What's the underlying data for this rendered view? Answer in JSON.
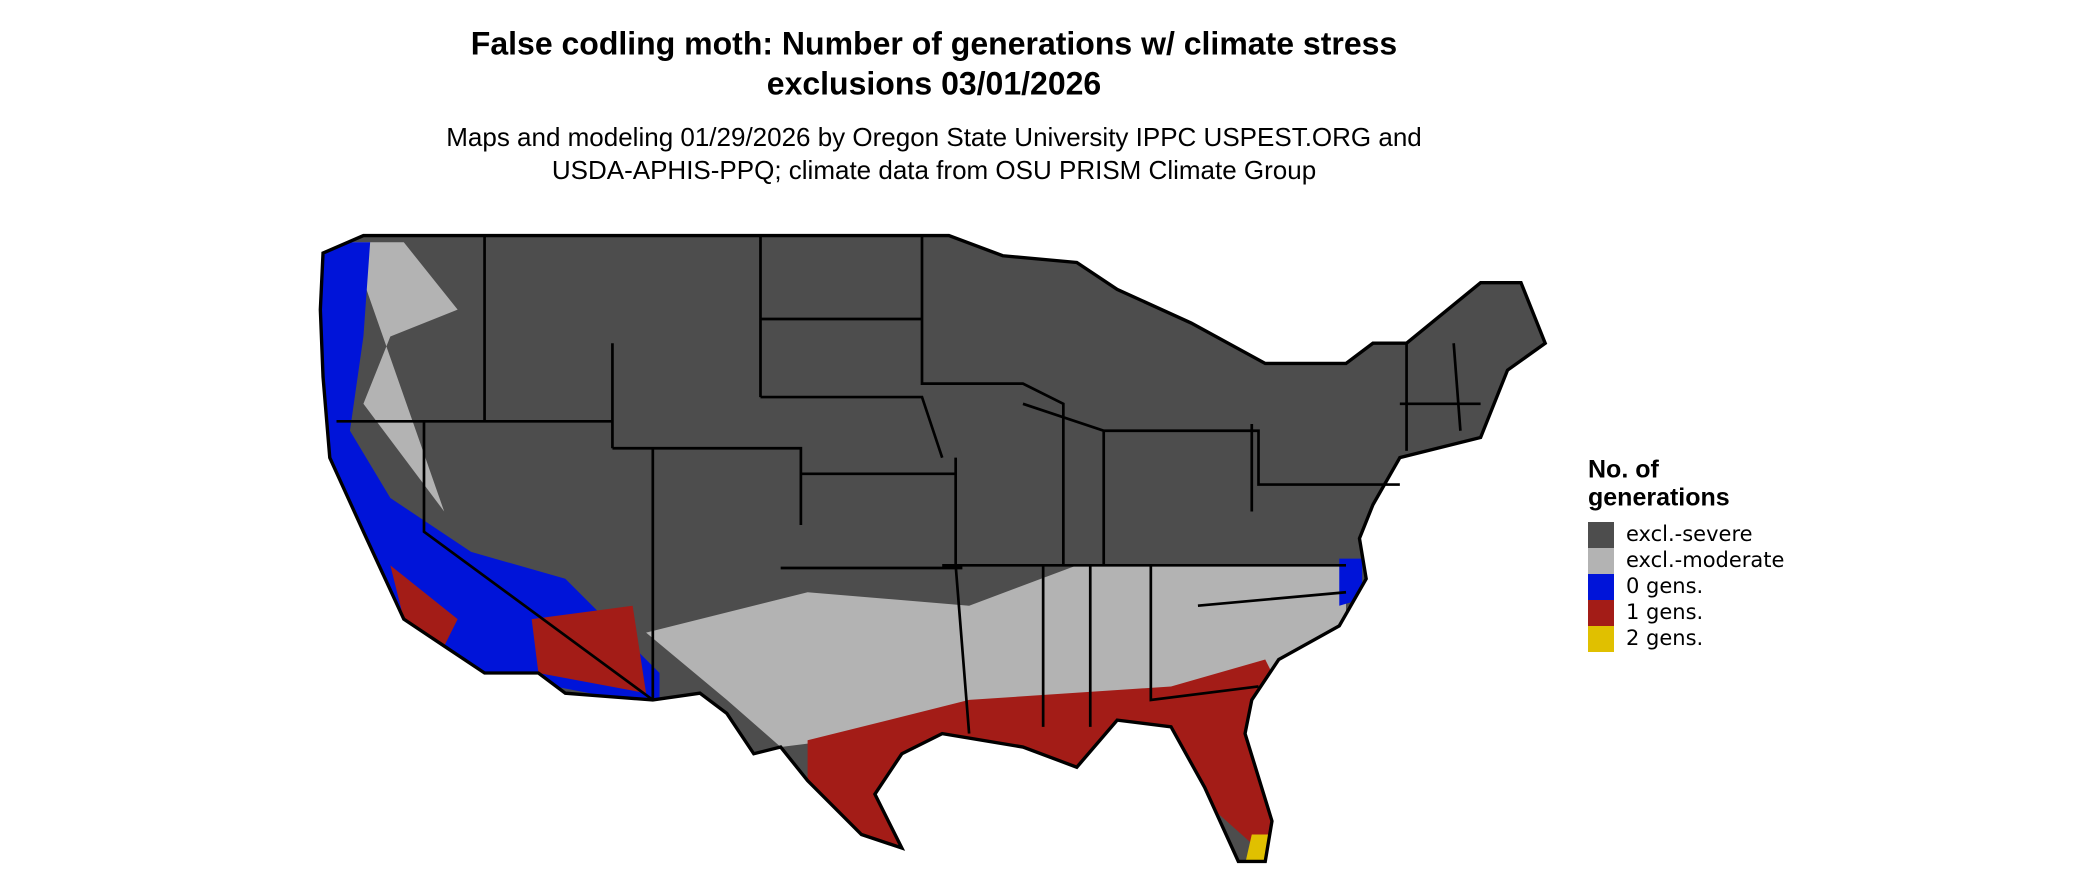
{
  "header": {
    "title": [
      "False codling moth: Number of generations w/ climate stress",
      "exclusions 03/01/2026"
    ],
    "subtitle": [
      "Maps and modeling 01/29/2026 by Oregon State University IPPC USPEST.ORG and",
      "USDA-APHIS-PPQ; climate data from OSU PRISM Climate Group"
    ]
  },
  "legend": {
    "title": [
      "No. of",
      "generations"
    ],
    "items": [
      {
        "label": "excl.-severe",
        "color": "#4d4d4d"
      },
      {
        "label": "excl.-moderate",
        "color": "#b3b3b3"
      },
      {
        "label": "0 gens.",
        "color": "#0014d9"
      },
      {
        "label": "1 gens.",
        "color": "#a31c17"
      },
      {
        "label": "2 gens.",
        "color": "#e0c000"
      }
    ]
  }
}
